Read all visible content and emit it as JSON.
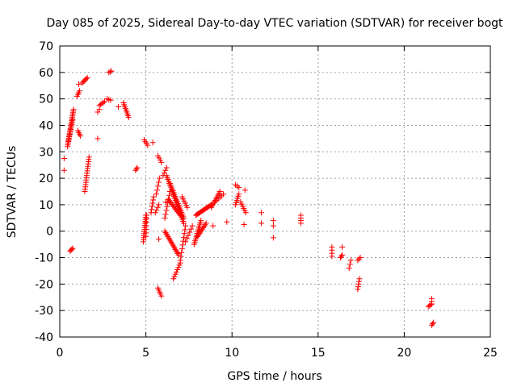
{
  "chart_data": {
    "type": "scatter",
    "title": "Day 085 of 2025, Sidereal Day-to-day VTEC variation (SDTVAR) for receiver bogt",
    "xlabel": "GPS time / hours",
    "ylabel": "SDTVAR / TECUs",
    "xlim": [
      0,
      25
    ],
    "ylim": [
      -40,
      70
    ],
    "xticks": [
      "0",
      "5",
      "10",
      "15",
      "20",
      "25"
    ],
    "yticks": [
      "-40",
      "-30",
      "-20",
      "-10",
      "0",
      "10",
      "20",
      "30",
      "40",
      "50",
      "60",
      "70"
    ],
    "grid": true,
    "marker": "plus",
    "color": "#ff0000",
    "segments": [
      {
        "x0": 0.45,
        "y0": 32,
        "x1": 0.8,
        "y1": 46,
        "n": 24
      },
      {
        "x0": 0.5,
        "y0": 34,
        "x1": 0.75,
        "y1": 42,
        "n": 10
      },
      {
        "x0": 0.6,
        "y0": -7.5,
        "x1": 0.75,
        "y1": -6.5,
        "n": 4
      },
      {
        "x0": 1.0,
        "y0": 51,
        "x1": 1.15,
        "y1": 53,
        "n": 4
      },
      {
        "x0": 1.05,
        "y0": 38,
        "x1": 1.2,
        "y1": 36,
        "n": 4
      },
      {
        "x0": 1.3,
        "y0": 56,
        "x1": 1.6,
        "y1": 58,
        "n": 6
      },
      {
        "x0": 1.45,
        "y0": 15,
        "x1": 1.7,
        "y1": 28,
        "n": 16
      },
      {
        "x0": 2.2,
        "y0": 45,
        "x1": 2.3,
        "y1": 46,
        "n": 2
      },
      {
        "x0": 2.3,
        "y0": 47.5,
        "x1": 2.6,
        "y1": 49,
        "n": 5
      },
      {
        "x0": 2.75,
        "y0": 50,
        "x1": 2.95,
        "y1": 49.5,
        "n": 3
      },
      {
        "x0": 2.85,
        "y0": 60,
        "x1": 3.0,
        "y1": 60.5,
        "n": 3
      },
      {
        "x0": 3.7,
        "y0": 48.5,
        "x1": 4.0,
        "y1": 43,
        "n": 9
      },
      {
        "x0": 4.4,
        "y0": 23,
        "x1": 4.5,
        "y1": 24,
        "n": 3
      },
      {
        "x0": 4.9,
        "y0": 34.5,
        "x1": 5.1,
        "y1": 32.5,
        "n": 4
      },
      {
        "x0": 4.85,
        "y0": -4,
        "x1": 5.0,
        "y1": 6,
        "n": 14
      },
      {
        "x0": 5.0,
        "y0": -2,
        "x1": 5.05,
        "y1": 6,
        "n": 7
      },
      {
        "x0": 5.3,
        "y0": 7,
        "x1": 5.45,
        "y1": 13,
        "n": 6
      },
      {
        "x0": 5.7,
        "y0": 28.5,
        "x1": 5.9,
        "y1": 26,
        "n": 4
      },
      {
        "x0": 5.7,
        "y0": -21.5,
        "x1": 5.9,
        "y1": -24.5,
        "n": 5
      },
      {
        "x0": 5.6,
        "y0": 14,
        "x1": 5.8,
        "y1": 20,
        "n": 5
      },
      {
        "x0": 5.55,
        "y0": 7,
        "x1": 5.75,
        "y1": 10,
        "n": 4
      },
      {
        "x0": 6.0,
        "y0": 21,
        "x1": 6.2,
        "y1": 24,
        "n": 4
      },
      {
        "x0": 6.1,
        "y0": 0,
        "x1": 6.9,
        "y1": -9,
        "n": 18
      },
      {
        "x0": 6.1,
        "y0": 5,
        "x1": 6.4,
        "y1": 15,
        "n": 8
      },
      {
        "x0": 6.2,
        "y0": 21,
        "x1": 7.2,
        "y1": 3,
        "n": 26
      },
      {
        "x0": 6.4,
        "y0": 18,
        "x1": 7.2,
        "y1": 5,
        "n": 20
      },
      {
        "x0": 6.3,
        "y0": 12,
        "x1": 7.0,
        "y1": 6,
        "n": 14
      },
      {
        "x0": 6.6,
        "y0": -18,
        "x1": 7.0,
        "y1": -12,
        "n": 8
      },
      {
        "x0": 7.0,
        "y0": -11,
        "x1": 7.3,
        "y1": 2,
        "n": 10
      },
      {
        "x0": 7.1,
        "y0": 13,
        "x1": 7.4,
        "y1": 9,
        "n": 6
      },
      {
        "x0": 7.3,
        "y0": -4,
        "x1": 7.7,
        "y1": 2,
        "n": 6
      },
      {
        "x0": 7.8,
        "y0": -5,
        "x1": 8.2,
        "y1": 4,
        "n": 14
      },
      {
        "x0": 7.9,
        "y0": 6,
        "x1": 8.8,
        "y1": 10,
        "n": 16
      },
      {
        "x0": 8.0,
        "y0": -2,
        "x1": 8.5,
        "y1": 3,
        "n": 10
      },
      {
        "x0": 8.8,
        "y0": 9,
        "x1": 9.3,
        "y1": 15,
        "n": 10
      },
      {
        "x0": 9.0,
        "y0": 11,
        "x1": 9.5,
        "y1": 14,
        "n": 6
      },
      {
        "x0": 10.2,
        "y0": 17.5,
        "x1": 10.4,
        "y1": 16.5,
        "n": 3
      },
      {
        "x0": 10.2,
        "y0": 10,
        "x1": 10.4,
        "y1": 14,
        "n": 6
      },
      {
        "x0": 10.5,
        "y0": 11,
        "x1": 10.8,
        "y1": 7,
        "n": 6
      },
      {
        "x0": 14.0,
        "y0": 3,
        "x1": 14.0,
        "y1": 6,
        "n": 4
      },
      {
        "x0": 15.8,
        "y0": -9.5,
        "x1": 15.8,
        "y1": -6,
        "n": 4
      },
      {
        "x0": 16.3,
        "y0": -10,
        "x1": 16.4,
        "y1": -9,
        "n": 3
      },
      {
        "x0": 16.8,
        "y0": -14,
        "x1": 16.9,
        "y1": -11,
        "n": 3
      },
      {
        "x0": 17.3,
        "y0": -22,
        "x1": 17.4,
        "y1": -18,
        "n": 5
      },
      {
        "x0": 17.3,
        "y0": -11,
        "x1": 17.45,
        "y1": -10,
        "n": 3
      },
      {
        "x0": 21.4,
        "y0": -28.5,
        "x1": 21.6,
        "y1": -27.5,
        "n": 4
      },
      {
        "x0": 21.6,
        "y0": -26.5,
        "x1": 21.6,
        "y1": -25.5,
        "n": 2
      },
      {
        "x0": 21.6,
        "y0": -35.5,
        "x1": 21.7,
        "y1": -34.5,
        "n": 3
      }
    ],
    "points": [
      [
        0.25,
        27.5
      ],
      [
        0.25,
        23
      ],
      [
        1.1,
        55.5
      ],
      [
        2.2,
        35
      ],
      [
        3.4,
        47
      ],
      [
        5.4,
        33.5
      ],
      [
        5.75,
        -3
      ],
      [
        6.15,
        11
      ],
      [
        8.9,
        2
      ],
      [
        9.7,
        3.5
      ],
      [
        10.7,
        2.5
      ],
      [
        10.75,
        15.5
      ],
      [
        11.7,
        7
      ],
      [
        11.7,
        3
      ],
      [
        12.4,
        4
      ],
      [
        12.4,
        2
      ],
      [
        12.4,
        -2.5
      ],
      [
        16.4,
        -6
      ]
    ]
  }
}
